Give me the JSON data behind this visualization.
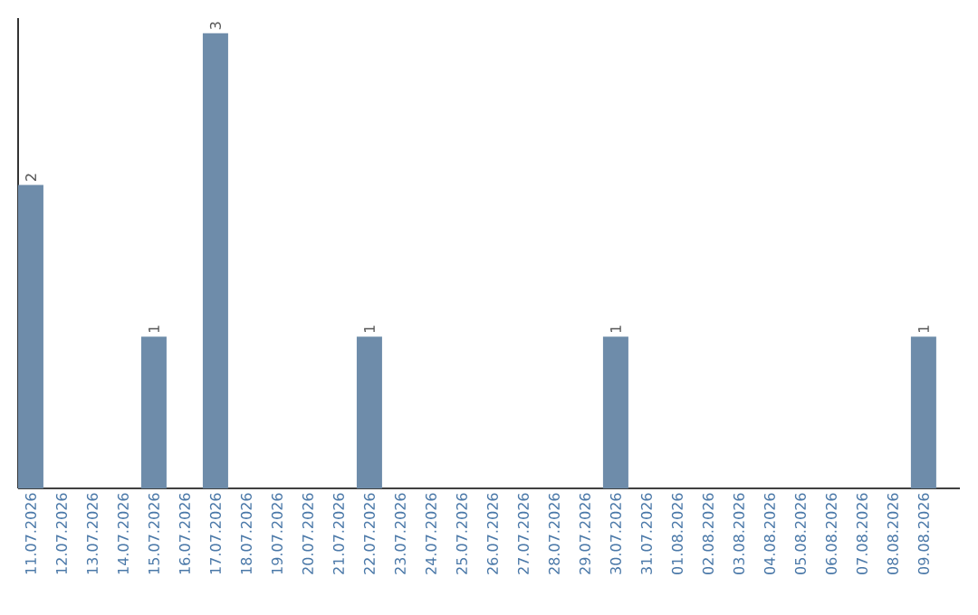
{
  "chart_data": {
    "type": "bar",
    "categories": [
      "11.07.2026",
      "12.07.2026",
      "13.07.2026",
      "14.07.2026",
      "15.07.2026",
      "16.07.2026",
      "17.07.2026",
      "18.07.2026",
      "19.07.2026",
      "20.07.2026",
      "21.07.2026",
      "22.07.2026",
      "23.07.2026",
      "24.07.2026",
      "25.07.2026",
      "26.07.2026",
      "27.07.2026",
      "28.07.2026",
      "29.07.2026",
      "30.07.2026",
      "31.07.2026",
      "01.08.2026",
      "02.08.2026",
      "03.08.2026",
      "04.08.2026",
      "05.08.2026",
      "06.08.2026",
      "07.08.2026",
      "08.08.2026",
      "09.08.2026"
    ],
    "values": [
      2,
      0,
      0,
      0,
      1,
      0,
      3,
      0,
      0,
      0,
      0,
      1,
      0,
      0,
      0,
      0,
      0,
      0,
      0,
      1,
      0,
      0,
      0,
      0,
      0,
      0,
      0,
      0,
      0,
      1
    ],
    "value_labels": [
      "2",
      null,
      null,
      null,
      "1",
      null,
      "3",
      null,
      null,
      null,
      null,
      "1",
      null,
      null,
      null,
      null,
      null,
      null,
      null,
      "1",
      null,
      null,
      null,
      null,
      null,
      null,
      null,
      null,
      null,
      "1"
    ],
    "color": "#6e8caa",
    "ylim": [
      0,
      3.1
    ],
    "tick_labels": "x"
  }
}
